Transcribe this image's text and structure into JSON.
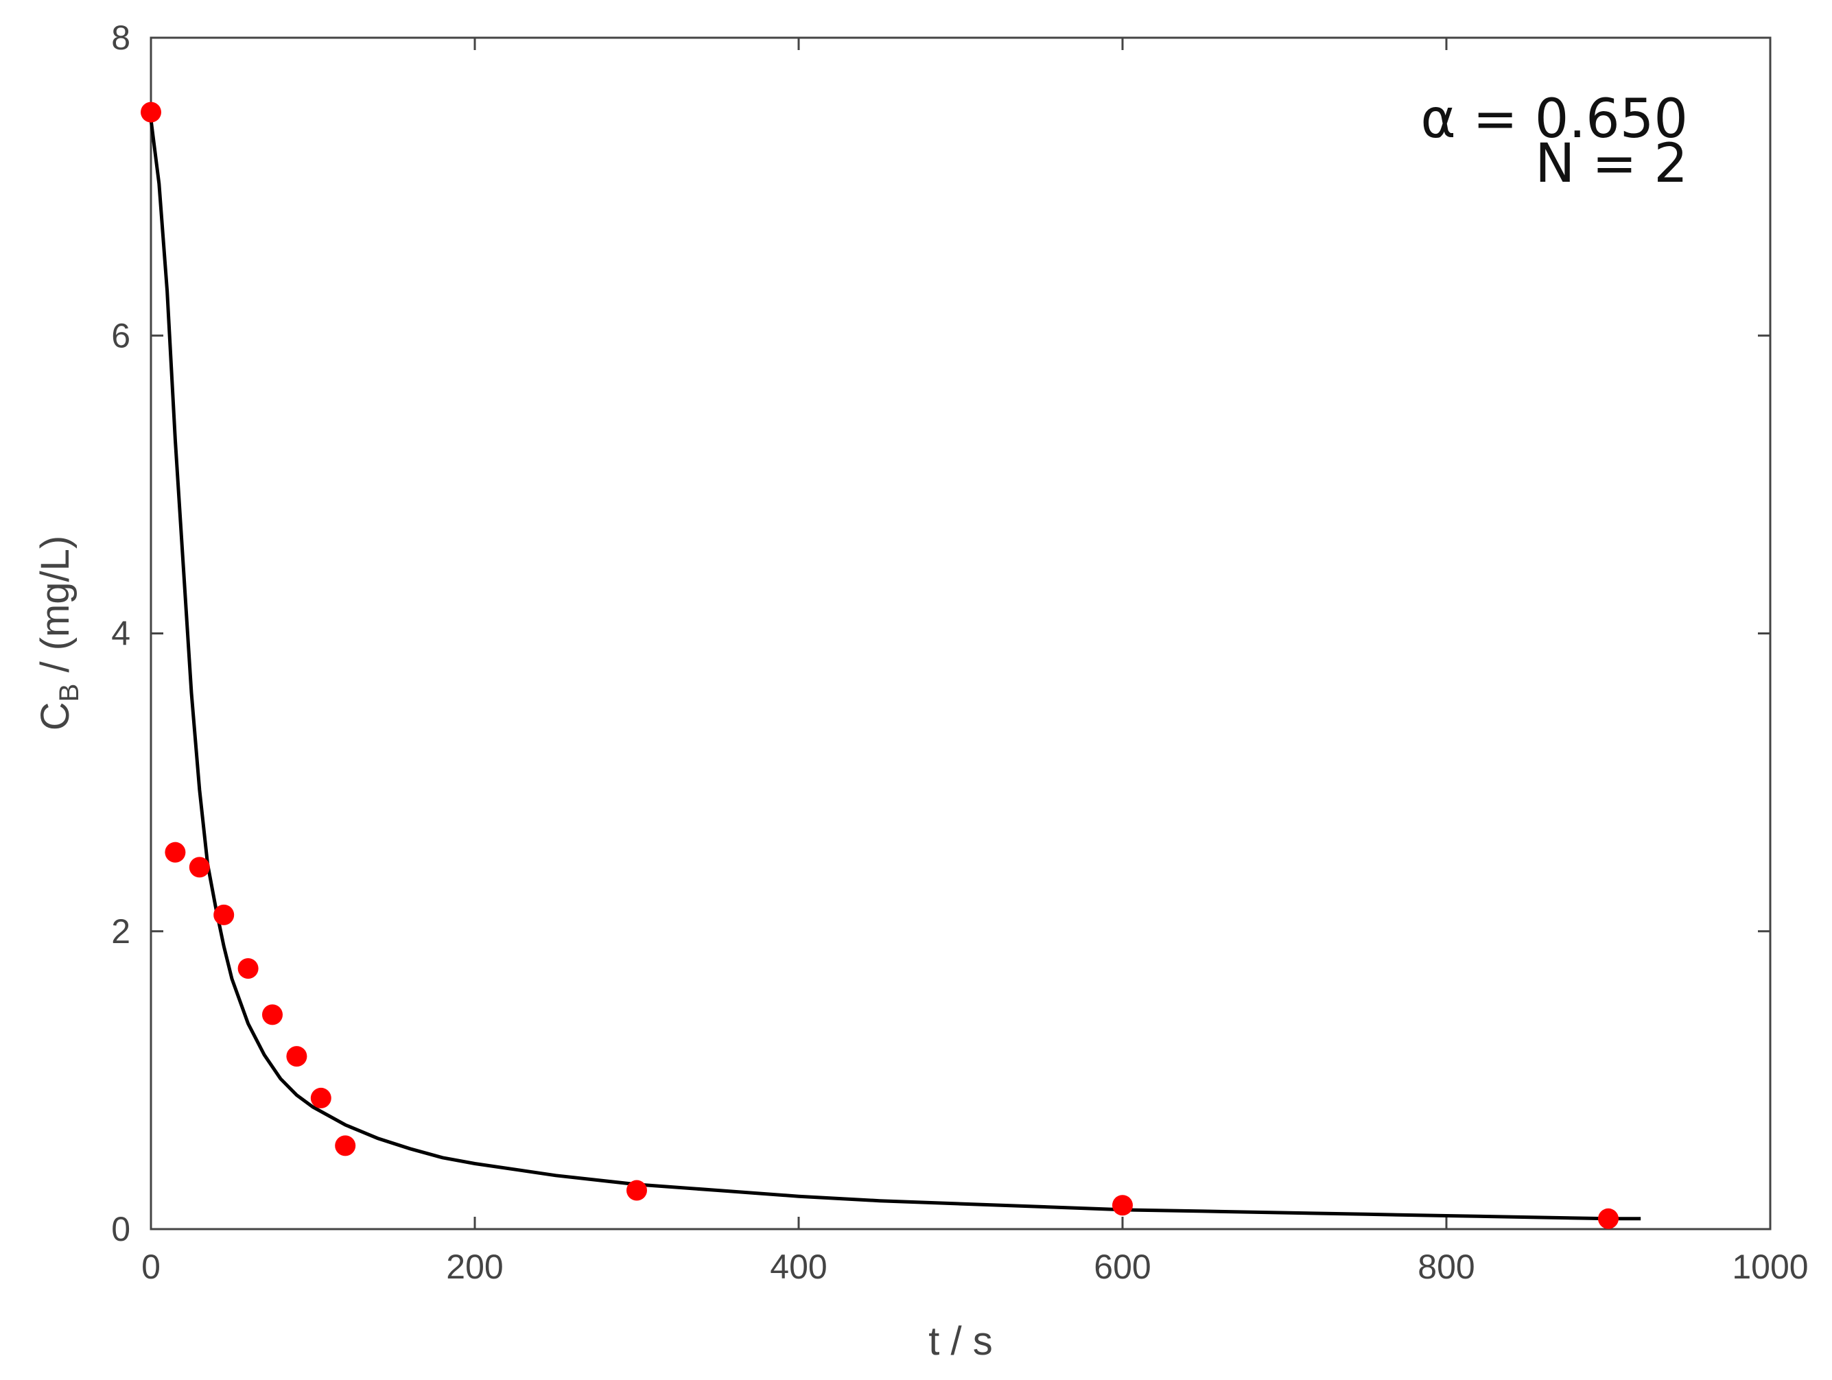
{
  "chart_data": {
    "type": "scatter",
    "xlabel": "t / s",
    "ylabel": {
      "main": "C",
      "subscript": "B",
      "rest": " / (mg/L)"
    },
    "xlim": [
      0,
      1000
    ],
    "ylim": [
      0,
      8
    ],
    "x_ticks": [
      0,
      200,
      400,
      600,
      800,
      1000
    ],
    "y_ticks": [
      0,
      2,
      4,
      6,
      8
    ],
    "grid": false,
    "colors": {
      "points": "#ff0000",
      "fit": "#000000",
      "axes": "#444444"
    },
    "annotations": [
      "α = 0.650",
      "N = 2"
    ],
    "series": [
      {
        "kind": "points",
        "x": [
          0,
          15,
          30,
          45,
          60,
          75,
          90,
          105,
          120,
          300,
          600,
          900
        ],
        "y": [
          7.5,
          2.53,
          2.43,
          2.11,
          1.75,
          1.44,
          1.16,
          0.88,
          0.56,
          0.26,
          0.16,
          0.07
        ]
      },
      {
        "kind": "fit-line",
        "x": [
          0,
          5,
          10,
          15,
          20,
          25,
          30,
          35,
          40,
          45,
          50,
          60,
          70,
          80,
          90,
          100,
          120,
          140,
          160,
          180,
          200,
          250,
          300,
          350,
          400,
          450,
          500,
          550,
          600,
          650,
          700,
          750,
          800,
          850,
          900,
          920
        ],
        "y": [
          7.45,
          7.02,
          6.3,
          5.3,
          4.45,
          3.6,
          2.95,
          2.45,
          2.16,
          1.9,
          1.68,
          1.38,
          1.17,
          1.01,
          0.9,
          0.82,
          0.7,
          0.61,
          0.54,
          0.48,
          0.44,
          0.36,
          0.3,
          0.26,
          0.22,
          0.19,
          0.17,
          0.15,
          0.13,
          0.12,
          0.11,
          0.1,
          0.09,
          0.08,
          0.07,
          0.07
        ]
      }
    ]
  }
}
